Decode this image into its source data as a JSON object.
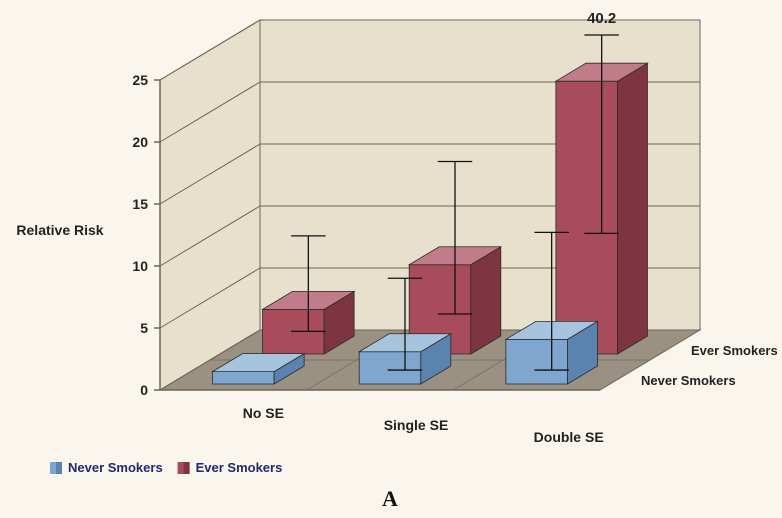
{
  "chart": {
    "type": "bar-3d",
    "panel_label": "A",
    "panel_label_fontsize": 22,
    "background_color": "#fbf6ed",
    "wall_color": "#e7e0cc",
    "floor_color": "#9a9182",
    "axis_line_color": "#6a6658",
    "tick_label_fontsize": 14,
    "yaxis": {
      "title": "Relative Risk",
      "min": 0,
      "max": 25,
      "tick_step": 5,
      "ticks": [
        0,
        5,
        10,
        15,
        20,
        25
      ]
    },
    "categories": [
      "No SE",
      "Single SE",
      "Double SE"
    ],
    "depth_categories": [
      "Never Smokers",
      "Ever Smokers"
    ],
    "series": [
      {
        "name": "Never Smokers",
        "legend_color_light": "#85aed4",
        "legend_color_dark": "#4f79a6",
        "color_front": "#7fa6cf",
        "color_top": "#a7c4de",
        "color_side": "#5a83b0",
        "depth_index": 0,
        "values": [
          1.0,
          2.6,
          3.6
        ],
        "error_hi": [
          null,
          7.8,
          11.5
        ],
        "error_lo": [
          null,
          0.4,
          0.4
        ]
      },
      {
        "name": "Ever Smokers",
        "legend_color_light": "#b55562",
        "legend_color_dark": "#8a3b4a",
        "color_front": "#a84b5b",
        "color_top": "#c07d89",
        "color_side": "#7d3542",
        "depth_index": 1,
        "values": [
          3.6,
          7.2,
          22.0
        ],
        "error_hi": [
          8.8,
          14.8,
          40.2
        ],
        "error_lo": [
          1.1,
          2.5,
          9.0
        ]
      }
    ],
    "annotations": [
      {
        "text": "40.2",
        "series": 1,
        "category": 2,
        "fontsize": 15
      }
    ],
    "legend": {
      "items": [
        {
          "label": "Never Smokers",
          "series": 0
        },
        {
          "label": "Ever Smokers",
          "series": 1
        }
      ],
      "label_color": "#1d2a6c",
      "fontsize": 13
    },
    "geometry_notes": "approximate reproduction of MS-Excel-style 3D clustered column chart"
  }
}
